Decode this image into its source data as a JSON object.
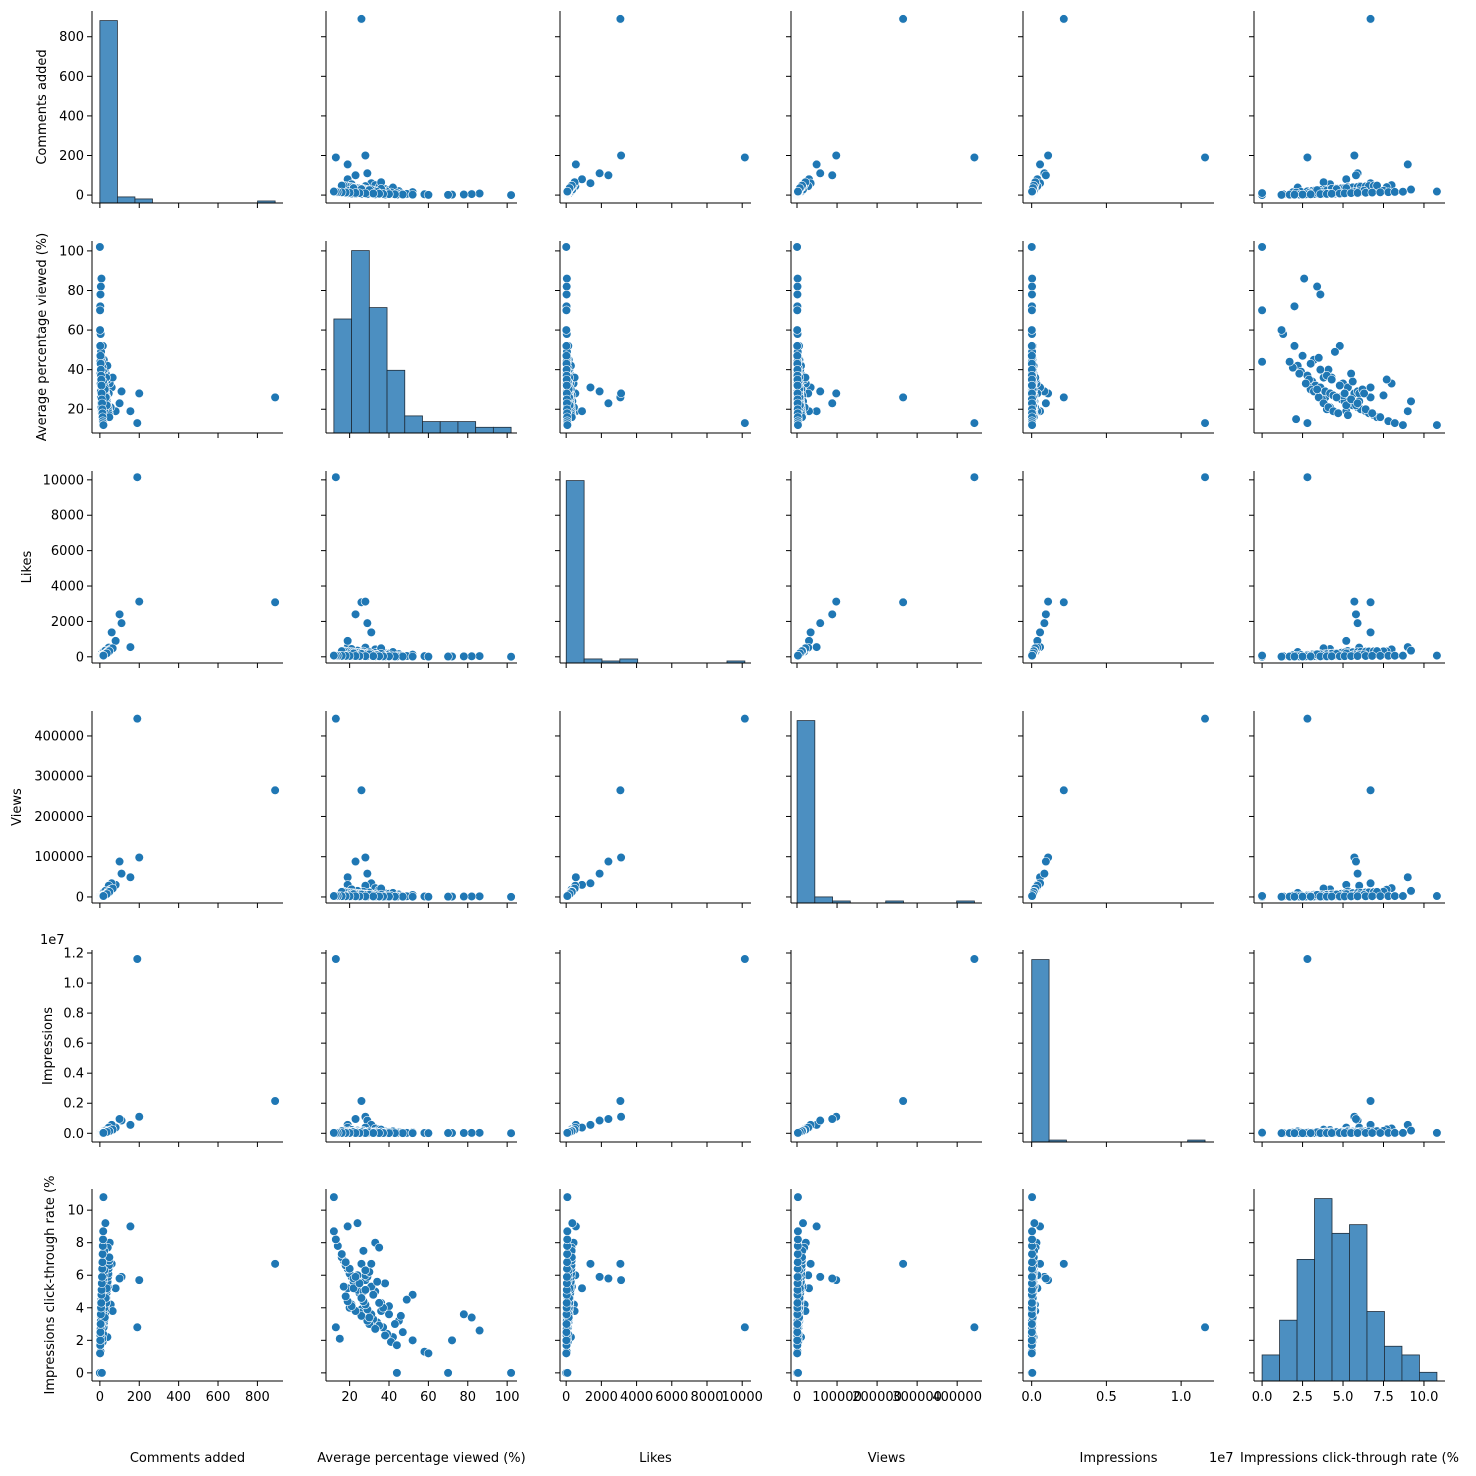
{
  "chart_data": {
    "type": "scatter",
    "subtype": "pairplot",
    "variables": [
      "Comments added",
      "Average percentage viewed (%)",
      "Likes",
      "Views",
      "Impressions",
      "Impressions click-through rate (%)"
    ],
    "axis_labels": [
      "Comments added",
      "Average percentage viewed (%)",
      "Likes",
      "Views",
      "Impressions",
      "Impressions click-through rate (%"
    ],
    "ranges": [
      [
        -40,
        930
      ],
      [
        8,
        105
      ],
      [
        -350,
        10500
      ],
      [
        -15000,
        462000
      ],
      [
        -580000,
        12200000
      ],
      [
        -0.5,
        11.3
      ]
    ],
    "ticks": [
      [
        0,
        200,
        400,
        600,
        800
      ],
      [
        20,
        40,
        60,
        80,
        100
      ],
      [
        0,
        2000,
        4000,
        6000,
        8000,
        10000
      ],
      [
        0,
        100000,
        200000,
        300000,
        400000
      ],
      [
        0,
        2000000,
        4000000,
        6000000,
        8000000,
        10000000,
        12000000
      ],
      [
        0,
        2,
        4,
        6,
        8,
        10
      ]
    ],
    "tick_labels": [
      [
        "0",
        "200",
        "400",
        "600",
        "800"
      ],
      [
        "20",
        "40",
        "60",
        "80",
        "100"
      ],
      [
        "0",
        "2000",
        "4000",
        "6000",
        "8000",
        "10000"
      ],
      [
        "0",
        "100000",
        "200000",
        "300000",
        "400000"
      ],
      [
        "0.0",
        "0.2",
        "0.4",
        "0.6",
        "0.8",
        "1.0",
        "1.2"
      ],
      [
        "0",
        "2",
        "4",
        "6",
        "8",
        "10"
      ]
    ],
    "x_tick_labels_overrides": {
      "4": [
        "0.0",
        "0.5",
        "1.0"
      ],
      "5": [
        "0.0",
        "2.5",
        "5.0",
        "7.5",
        "10.0"
      ]
    },
    "x_tick_values_overrides": {
      "4": [
        0,
        5000000,
        10000000
      ],
      "5": [
        0,
        2.5,
        5.0,
        7.5,
        10.0
      ]
    },
    "offset_text": "1e7",
    "grid": false,
    "legend": "none",
    "points": [
      [
        890,
        26,
        3080,
        265000,
        2150000,
        6.7
      ],
      [
        190,
        13,
        10150,
        443000,
        11600000,
        2.8
      ],
      [
        200,
        28,
        3120,
        98000,
        1100000,
        5.7
      ],
      [
        155,
        19,
        550,
        49000,
        560000,
        9.0
      ],
      [
        110,
        29,
        1900,
        58000,
        850000,
        5.9
      ],
      [
        100,
        23,
        2400,
        88000,
        950000,
        5.8
      ],
      [
        80,
        19,
        900,
        30000,
        380000,
        5.2
      ],
      [
        60,
        31,
        1380,
        34000,
        560000,
        6.7
      ],
      [
        50,
        33,
        420,
        22000,
        320000,
        8.0
      ],
      [
        40,
        35,
        300,
        18000,
        260000,
        7.7
      ],
      [
        45,
        28,
        520,
        28000,
        380000,
        6.0
      ],
      [
        35,
        26,
        250,
        12000,
        150000,
        3.9
      ],
      [
        30,
        38,
        200,
        9000,
        120000,
        5.5
      ],
      [
        25,
        40,
        180,
        8000,
        90000,
        4.1
      ],
      [
        20,
        45,
        150,
        6000,
        80000,
        3.2
      ],
      [
        15,
        52,
        120,
        5000,
        60000,
        4.8
      ],
      [
        12,
        33,
        220,
        7000,
        100000,
        5.0
      ],
      [
        18,
        30,
        260,
        11000,
        140000,
        6.2
      ],
      [
        22,
        27,
        310,
        13000,
        160000,
        7.5
      ],
      [
        28,
        24,
        350,
        15000,
        180000,
        9.2
      ],
      [
        55,
        21,
        440,
        19000,
        220000,
        4.2
      ],
      [
        65,
        36,
        480,
        21000,
        240000,
        3.8
      ],
      [
        38,
        42,
        270,
        10000,
        130000,
        2.2
      ],
      [
        42,
        17,
        330,
        14000,
        170000,
        5.3
      ],
      [
        8,
        86,
        40,
        1500,
        30000,
        2.6
      ],
      [
        5,
        82,
        30,
        1200,
        25000,
        3.4
      ],
      [
        3,
        78,
        25,
        1000,
        20000,
        3.6
      ],
      [
        2,
        72,
        20,
        900,
        18000,
        2.0
      ],
      [
        1,
        70,
        15,
        700,
        15000,
        0.0
      ],
      [
        0,
        102,
        5,
        200,
        5000,
        0.0
      ],
      [
        4,
        58,
        35,
        1300,
        22000,
        1.3
      ],
      [
        6,
        49,
        45,
        1800,
        28000,
        4.5
      ],
      [
        9,
        46,
        60,
        2200,
        35000,
        3.5
      ],
      [
        10,
        44,
        70,
        2500,
        40000,
        0.0
      ],
      [
        14,
        41,
        90,
        3000,
        45000,
        1.9
      ],
      [
        16,
        39,
        100,
        3500,
        50000,
        2.4
      ],
      [
        19,
        37,
        110,
        4000,
        55000,
        2.8
      ],
      [
        21,
        34,
        130,
        4500,
        60000,
        3.1
      ],
      [
        24,
        32,
        140,
        5000,
        65000,
        3.3
      ],
      [
        26,
        31,
        160,
        5500,
        70000,
        3.6
      ],
      [
        27,
        29,
        170,
        6000,
        75000,
        3.9
      ],
      [
        29,
        28,
        190,
        6500,
        80000,
        4.2
      ],
      [
        31,
        27,
        200,
        7000,
        85000,
        4.4
      ],
      [
        33,
        26,
        210,
        7500,
        90000,
        4.6
      ],
      [
        34,
        25,
        230,
        8000,
        95000,
        4.9
      ],
      [
        36,
        24,
        240,
        8500,
        100000,
        5.1
      ],
      [
        37,
        23,
        250,
        9000,
        105000,
        5.4
      ],
      [
        39,
        22,
        260,
        9500,
        110000,
        5.6
      ],
      [
        41,
        21,
        270,
        10000,
        115000,
        5.9
      ],
      [
        43,
        20,
        280,
        10500,
        120000,
        6.1
      ],
      [
        44,
        19,
        290,
        11000,
        125000,
        6.4
      ],
      [
        46,
        18,
        300,
        11500,
        130000,
        6.6
      ],
      [
        47,
        17,
        310,
        12000,
        135000,
        6.9
      ],
      [
        48,
        16,
        320,
        12500,
        140000,
        7.1
      ],
      [
        13,
        15,
        60,
        2500,
        40000,
        2.1
      ],
      [
        11,
        35,
        80,
        3200,
        50000,
        2.9
      ],
      [
        7,
        30,
        50,
        2000,
        30000,
        3.0
      ],
      [
        17,
        25,
        120,
        4200,
        55000,
        3.7
      ],
      [
        23,
        20,
        150,
        5200,
        65000,
        4.0
      ],
      [
        32,
        36,
        180,
        6200,
        75000,
        4.3
      ],
      [
        2,
        44,
        20,
        800,
        12000,
        1.7
      ],
      [
        3,
        38,
        25,
        1000,
        15000,
        2.3
      ],
      [
        4,
        33,
        30,
        1100,
        16000,
        2.7
      ],
      [
        5,
        29,
        35,
        1300,
        18000,
        3.2
      ],
      [
        6,
        26,
        40,
        1500,
        20000,
        3.5
      ],
      [
        7,
        23,
        45,
        1700,
        22000,
        3.8
      ],
      [
        8,
        21,
        50,
        1900,
        24000,
        4.1
      ],
      [
        9,
        19,
        55,
        2100,
        26000,
        4.4
      ],
      [
        10,
        18,
        60,
        2300,
        28000,
        4.7
      ],
      [
        12,
        27,
        70,
        2700,
        34000,
        5.0
      ],
      [
        14,
        31,
        85,
        3300,
        42000,
        5.3
      ],
      [
        16,
        34,
        95,
        3700,
        47000,
        5.6
      ],
      [
        18,
        22,
        105,
        4100,
        52000,
        5.8
      ],
      [
        20,
        24,
        125,
        4700,
        58000,
        6.0
      ],
      [
        22,
        28,
        135,
        5100,
        62000,
        6.3
      ],
      [
        25,
        30,
        145,
        5300,
        66000,
        3.4
      ],
      [
        30,
        26,
        165,
        6100,
        74000,
        4.6
      ],
      [
        35,
        22,
        195,
        7200,
        88000,
        5.2
      ],
      [
        1,
        60,
        10,
        500,
        8000,
        1.2
      ],
      [
        2,
        52,
        15,
        600,
        10000,
        2.0
      ],
      [
        3,
        47,
        18,
        750,
        11000,
        2.5
      ],
      [
        4,
        43,
        22,
        900,
        13000,
        3.0
      ],
      [
        5,
        40,
        26,
        1050,
        14000,
        3.6
      ],
      [
        6,
        37,
        30,
        1150,
        15000,
        4.0
      ],
      [
        7,
        35,
        33,
        1250,
        16000,
        4.3
      ],
      [
        8,
        32,
        36,
        1350,
        17000,
        4.8
      ],
      [
        9,
        28,
        39,
        1450,
        18000,
        5.1
      ],
      [
        10,
        25,
        42,
        1550,
        19000,
        5.5
      ],
      [
        11,
        23,
        45,
        1650,
        20000,
        5.9
      ],
      [
        12,
        20,
        48,
        1750,
        21000,
        6.4
      ],
      [
        13,
        18,
        52,
        1850,
        22000,
        6.8
      ],
      [
        14,
        16,
        55,
        1950,
        23000,
        7.3
      ],
      [
        15,
        14,
        58,
        2050,
        24000,
        7.8
      ],
      [
        16,
        13,
        62,
        2150,
        25000,
        8.2
      ],
      [
        17,
        12,
        65,
        2250,
        26000,
        8.7
      ],
      [
        18,
        12,
        68,
        2350,
        27000,
        10.8
      ]
    ]
  }
}
